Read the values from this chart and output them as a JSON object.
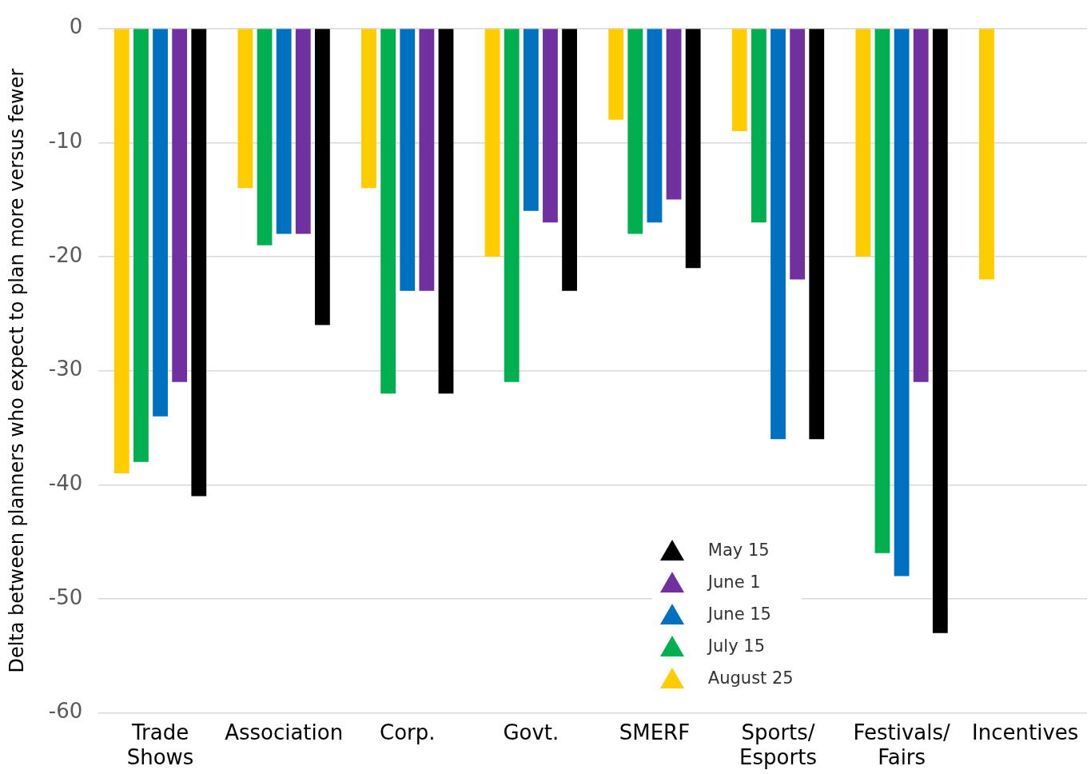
{
  "chart_data": {
    "type": "bar",
    "ylabel": "Delta between planners who expect to plan more versus fewer",
    "categories": [
      "Trade Shows",
      "Association",
      "Corp.",
      "Govt.",
      "SMERF",
      "Sports/ Esports",
      "Festivals/ Fairs",
      "Incentives"
    ],
    "series": [
      {
        "name": "August 25",
        "color": "#ffcc00",
        "values": [
          -39,
          -14,
          -14,
          -20,
          -8,
          -9,
          -20,
          -22
        ]
      },
      {
        "name": "July 15",
        "color": "#00b050",
        "values": [
          -38,
          -19,
          -32,
          -31,
          -18,
          -17,
          -46,
          null
        ]
      },
      {
        "name": "June 15",
        "color": "#0070c0",
        "values": [
          -34,
          -18,
          -23,
          -16,
          -17,
          -36,
          -48,
          null
        ]
      },
      {
        "name": "June 1",
        "color": "#7030a0",
        "values": [
          -31,
          -18,
          -23,
          -17,
          -15,
          -22,
          -31,
          null
        ]
      },
      {
        "name": "May 15",
        "color": "#000000",
        "values": [
          -41,
          -26,
          -32,
          -23,
          -21,
          -36,
          -53,
          null
        ]
      }
    ],
    "ylim": [
      -60,
      0
    ],
    "yticks": [
      0,
      -10,
      -20,
      -30,
      -40,
      -50,
      -60
    ],
    "grid": "y",
    "legend": "bottom right",
    "marker": "triangle"
  }
}
